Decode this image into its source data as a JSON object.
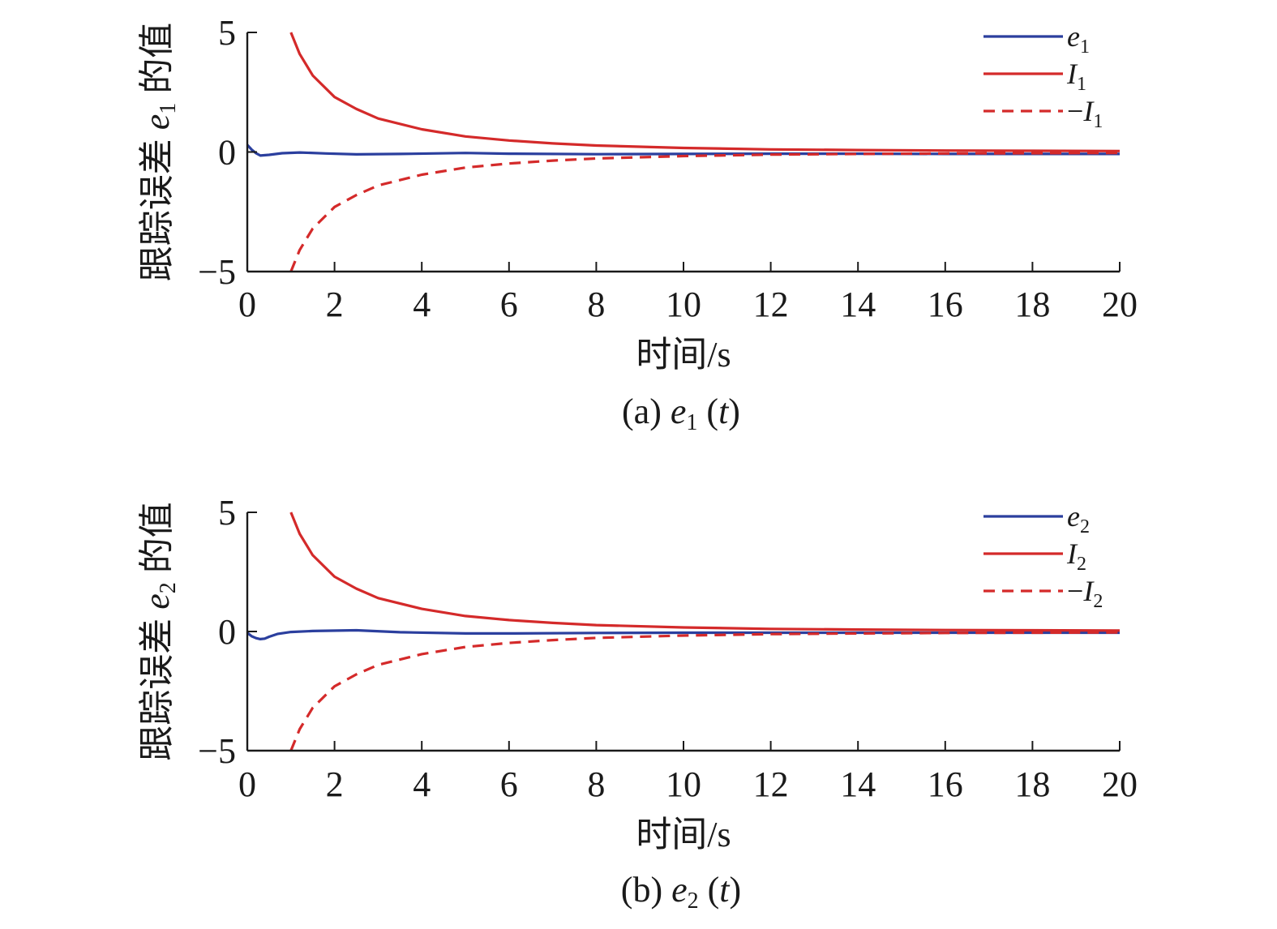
{
  "chart_data": [
    {
      "type": "line",
      "caption": {
        "prefix": "(a) ",
        "var": "e",
        "sub": "1",
        "arg_open": " (",
        "arg": "t",
        "arg_close": ")"
      },
      "xlabel": "时间/s",
      "ylabel": {
        "prefix": "跟踪误差 ",
        "var": "e",
        "sub": "1",
        "suffix": " 的值"
      },
      "xlim": [
        0,
        20
      ],
      "ylim": [
        -5,
        5
      ],
      "xticks": [
        "0",
        "2",
        "4",
        "6",
        "8",
        "10",
        "12",
        "14",
        "16",
        "18",
        "20"
      ],
      "yticks": [
        "5",
        "0",
        "−5"
      ],
      "grid": false,
      "legend_position": "top-right",
      "series": [
        {
          "name": "e1",
          "legend": {
            "pre": "",
            "var": "e",
            "sub": "1"
          },
          "style": "solid",
          "color": "#2b3f9e",
          "x": [
            0,
            0.1,
            0.2,
            0.3,
            0.5,
            0.8,
            1.2,
            1.8,
            2.5,
            3.5,
            5,
            6,
            8,
            10,
            12,
            14,
            16,
            18,
            20
          ],
          "y": [
            0.3,
            0.1,
            -0.05,
            -0.15,
            -0.12,
            -0.05,
            -0.02,
            -0.06,
            -0.1,
            -0.08,
            -0.04,
            -0.07,
            -0.09,
            -0.08,
            -0.07,
            -0.07,
            -0.08,
            -0.08,
            -0.08
          ]
        },
        {
          "name": "I1",
          "legend": {
            "pre": "",
            "var": "I",
            "sub": "1"
          },
          "style": "solid",
          "color": "#d42a2a",
          "x": [
            1.0,
            1.2,
            1.5,
            2,
            2.5,
            3,
            4,
            5,
            6,
            7,
            8,
            10,
            12,
            14,
            16,
            18,
            20
          ],
          "y": [
            5.0,
            4.1,
            3.2,
            2.3,
            1.8,
            1.4,
            0.95,
            0.65,
            0.48,
            0.36,
            0.27,
            0.17,
            0.11,
            0.08,
            0.06,
            0.05,
            0.04
          ]
        },
        {
          "name": "-I1",
          "legend": {
            "pre": "−",
            "var": "I",
            "sub": "1"
          },
          "style": "dashed",
          "color": "#d42a2a",
          "x": [
            1.0,
            1.2,
            1.5,
            2,
            2.5,
            3,
            4,
            5,
            6,
            7,
            8,
            10,
            12,
            14,
            16,
            18,
            20
          ],
          "y": [
            -5.0,
            -4.1,
            -3.2,
            -2.3,
            -1.8,
            -1.4,
            -0.95,
            -0.65,
            -0.48,
            -0.36,
            -0.27,
            -0.17,
            -0.11,
            -0.08,
            -0.06,
            -0.05,
            -0.04
          ]
        }
      ]
    },
    {
      "type": "line",
      "caption": {
        "prefix": "(b) ",
        "var": "e",
        "sub": "2",
        "arg_open": " (",
        "arg": "t",
        "arg_close": ")"
      },
      "xlabel": "时间/s",
      "ylabel": {
        "prefix": "跟踪误差 ",
        "var": "e",
        "sub": "2",
        "suffix": " 的值"
      },
      "xlim": [
        0,
        20
      ],
      "ylim": [
        -5,
        5
      ],
      "xticks": [
        "0",
        "2",
        "4",
        "6",
        "8",
        "10",
        "12",
        "14",
        "16",
        "18",
        "20"
      ],
      "yticks": [
        "5",
        "0",
        "−5"
      ],
      "grid": false,
      "legend_position": "top-right",
      "series": [
        {
          "name": "e2",
          "legend": {
            "pre": "",
            "var": "e",
            "sub": "2"
          },
          "style": "solid",
          "color": "#2b3f9e",
          "x": [
            0,
            0.1,
            0.2,
            0.3,
            0.4,
            0.5,
            0.7,
            1.0,
            1.5,
            2.5,
            3.5,
            5,
            6,
            8,
            10,
            12,
            14,
            16,
            18,
            20
          ],
          "y": [
            -0.05,
            -0.2,
            -0.28,
            -0.32,
            -0.3,
            -0.22,
            -0.1,
            -0.02,
            0.02,
            0.05,
            -0.03,
            -0.08,
            -0.08,
            -0.06,
            -0.05,
            -0.05,
            -0.05,
            -0.05,
            -0.05,
            -0.05
          ]
        },
        {
          "name": "I2",
          "legend": {
            "pre": "",
            "var": "I",
            "sub": "2"
          },
          "style": "solid",
          "color": "#d42a2a",
          "x": [
            1.0,
            1.2,
            1.5,
            2,
            2.5,
            3,
            4,
            5,
            6,
            7,
            8,
            10,
            12,
            14,
            16,
            18,
            20
          ],
          "y": [
            5.0,
            4.1,
            3.2,
            2.3,
            1.8,
            1.4,
            0.95,
            0.65,
            0.48,
            0.36,
            0.27,
            0.17,
            0.11,
            0.08,
            0.06,
            0.05,
            0.04
          ]
        },
        {
          "name": "-I2",
          "legend": {
            "pre": "−",
            "var": "I",
            "sub": "2"
          },
          "style": "dashed",
          "color": "#d42a2a",
          "x": [
            1.0,
            1.2,
            1.5,
            2,
            2.5,
            3,
            4,
            5,
            6,
            7,
            8,
            10,
            12,
            14,
            16,
            18,
            20
          ],
          "y": [
            -5.0,
            -4.1,
            -3.2,
            -2.3,
            -1.8,
            -1.4,
            -0.95,
            -0.65,
            -0.48,
            -0.36,
            -0.27,
            -0.17,
            -0.11,
            -0.08,
            -0.06,
            -0.05,
            -0.04
          ]
        }
      ]
    }
  ]
}
